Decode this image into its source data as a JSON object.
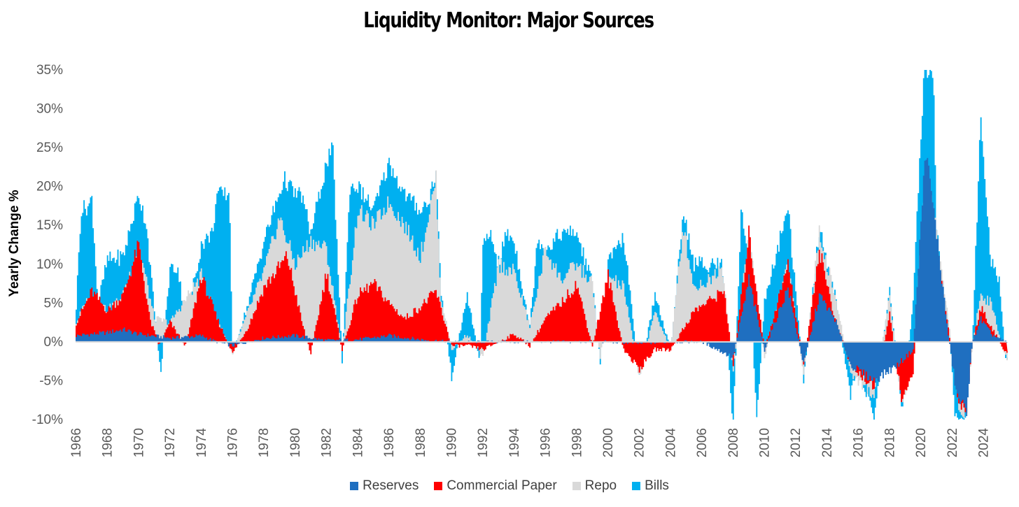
{
  "chart_data": {
    "type": "area",
    "title": "Liquidity Monitor: Major Sources",
    "xlabel": "",
    "ylabel": "Yearly Change %",
    "xlim": [
      1966,
      2025.5
    ],
    "ylim": [
      -10,
      35
    ],
    "yticks": [
      "-10%",
      "-5%",
      "0%",
      "5%",
      "10%",
      "15%",
      "20%",
      "25%",
      "30%",
      "35%"
    ],
    "ytick_values": [
      -10,
      -5,
      0,
      5,
      10,
      15,
      20,
      25,
      30,
      35
    ],
    "xticks": [
      "1966",
      "1968",
      "1970",
      "1972",
      "1974",
      "1976",
      "1978",
      "1980",
      "1982",
      "1984",
      "1986",
      "1988",
      "1990",
      "1992",
      "1994",
      "1996",
      "1998",
      "2000",
      "2002",
      "2004",
      "2006",
      "2008",
      "2010",
      "2012",
      "2014",
      "2016",
      "2018",
      "2020",
      "2022",
      "2024"
    ],
    "grid": false,
    "legend_position": "bottom",
    "series": [
      {
        "name": "Reserves",
        "color": "#1F6FC0",
        "points": [
          [
            1966,
            0.8
          ],
          [
            1968,
            1.2
          ],
          [
            1969,
            1.6
          ],
          [
            1970,
            1.0
          ],
          [
            1972,
            0.5
          ],
          [
            1974,
            0.8
          ],
          [
            1975,
            0.0
          ],
          [
            1976,
            -0.5
          ],
          [
            1978,
            0.5
          ],
          [
            1980,
            0.8
          ],
          [
            1982,
            0.2
          ],
          [
            1984,
            0.3
          ],
          [
            1986,
            0.8
          ],
          [
            1988,
            0.3
          ],
          [
            1990,
            0.0
          ],
          [
            1992,
            0.0
          ],
          [
            1994,
            0.0
          ],
          [
            1996,
            0.0
          ],
          [
            1998,
            0.0
          ],
          [
            2000,
            0.0
          ],
          [
            2002,
            -0.2
          ],
          [
            2004,
            0.0
          ],
          [
            2006,
            0.0
          ],
          [
            2008,
            -2.0
          ],
          [
            2009,
            8.0
          ],
          [
            2010,
            -1.0
          ],
          [
            2011.5,
            7.0
          ],
          [
            2012.5,
            -3.0
          ],
          [
            2013.5,
            6.0
          ],
          [
            2014.5,
            3.0
          ],
          [
            2015.5,
            -3.0
          ],
          [
            2017,
            -5.0
          ],
          [
            2018.5,
            -3.0
          ],
          [
            2019.5,
            -1.0
          ],
          [
            2020.3,
            25.0
          ],
          [
            2021,
            14.0
          ],
          [
            2021.8,
            0.0
          ],
          [
            2022.3,
            -7.0
          ],
          [
            2022.9,
            -9.0
          ],
          [
            2023.3,
            0.0
          ],
          [
            2023.8,
            3.0
          ],
          [
            2024.5,
            1.0
          ],
          [
            2025.4,
            0.0
          ]
        ]
      },
      {
        "name": "Commercial Paper",
        "color": "#FF0000",
        "points": [
          [
            1966,
            2.5
          ],
          [
            1967,
            6.5
          ],
          [
            1968,
            4.0
          ],
          [
            1969,
            6.0
          ],
          [
            1970,
            12.5
          ],
          [
            1970.7,
            3.0
          ],
          [
            1971.3,
            -0.5
          ],
          [
            1972,
            2.5
          ],
          [
            1973,
            -0.5
          ],
          [
            1974,
            8.5
          ],
          [
            1975,
            3.0
          ],
          [
            1976,
            -1.5
          ],
          [
            1977,
            2.0
          ],
          [
            1978,
            7.0
          ],
          [
            1979.5,
            11.0
          ],
          [
            1980.5,
            2.0
          ],
          [
            1981,
            -1.5
          ],
          [
            1982,
            9.0
          ],
          [
            1983,
            -1.0
          ],
          [
            1984,
            6.0
          ],
          [
            1985,
            7.5
          ],
          [
            1986,
            5.0
          ],
          [
            1987,
            3.0
          ],
          [
            1988,
            4.5
          ],
          [
            1989,
            6.5
          ],
          [
            1990,
            -0.5
          ],
          [
            1991,
            -0.5
          ],
          [
            1992,
            -1.0
          ],
          [
            1993,
            0.0
          ],
          [
            1994,
            1.0
          ],
          [
            1995,
            -0.5
          ],
          [
            1996,
            3.0
          ],
          [
            1997,
            5.0
          ],
          [
            1998,
            7.5
          ],
          [
            1999,
            -0.5
          ],
          [
            2000,
            8.5
          ],
          [
            2001,
            -1.0
          ],
          [
            2002,
            -3.5
          ],
          [
            2003,
            -1.0
          ],
          [
            2004,
            -1.0
          ],
          [
            2005.5,
            4.0
          ],
          [
            2007,
            6.0
          ],
          [
            2007.4,
            7.0
          ],
          [
            2008,
            -3.0
          ],
          [
            2009,
            14.0
          ],
          [
            2010,
            -1.0
          ],
          [
            2011.5,
            10.0
          ],
          [
            2012.5,
            -3.0
          ],
          [
            2013.5,
            12.0
          ],
          [
            2014.5,
            3.0
          ],
          [
            2015.5,
            -3.0
          ],
          [
            2017,
            -6.0
          ],
          [
            2018,
            3.5
          ],
          [
            2018.8,
            -8.0
          ],
          [
            2019.5,
            -4.0
          ],
          [
            2020.3,
            18.0
          ],
          [
            2021,
            12.0
          ],
          [
            2021.8,
            1.0
          ],
          [
            2022.4,
            -7.5
          ],
          [
            2022.9,
            -9.0
          ],
          [
            2023.3,
            0.0
          ],
          [
            2023.8,
            4.5
          ],
          [
            2024.5,
            2.0
          ],
          [
            2025.4,
            -1.5
          ]
        ]
      },
      {
        "name": "Repo",
        "color": "#D9D9D9",
        "points": [
          [
            1966,
            2.5
          ],
          [
            1967,
            6.5
          ],
          [
            1968,
            4.0
          ],
          [
            1969,
            6.0
          ],
          [
            1970,
            12.5
          ],
          [
            1971,
            3.0
          ],
          [
            1972,
            2.5
          ],
          [
            1974,
            8.5
          ],
          [
            1975,
            3.0
          ],
          [
            1976,
            -1.5
          ],
          [
            1977,
            4.0
          ],
          [
            1978,
            9.0
          ],
          [
            1979,
            16.0
          ],
          [
            1980,
            10.0
          ],
          [
            1981,
            13.0
          ],
          [
            1982,
            12.0
          ],
          [
            1983,
            -1.0
          ],
          [
            1984,
            17.0
          ],
          [
            1985,
            15.0
          ],
          [
            1986,
            18.0
          ],
          [
            1987,
            15.0
          ],
          [
            1988,
            11.0
          ],
          [
            1989,
            21.0
          ],
          [
            1989.3,
            6.0
          ],
          [
            1990,
            -1.0
          ],
          [
            1991,
            1.0
          ],
          [
            1992,
            -2.0
          ],
          [
            1993,
            10.0
          ],
          [
            1994,
            9.0
          ],
          [
            1995,
            2.0
          ],
          [
            1996,
            12.0
          ],
          [
            1997,
            8.0
          ],
          [
            1998,
            10.0
          ],
          [
            1999,
            7.5
          ],
          [
            1999.5,
            -2.5
          ],
          [
            2000,
            8.5
          ],
          [
            2001,
            7.0
          ],
          [
            2002,
            -4.5
          ],
          [
            2003,
            4.0
          ],
          [
            2004,
            -1.0
          ],
          [
            2004.8,
            15.0
          ],
          [
            2005.5,
            7.0
          ],
          [
            2006.5,
            8.0
          ],
          [
            2007.3,
            10.0
          ],
          [
            2008,
            -4.0
          ],
          [
            2009,
            14.0
          ],
          [
            2010,
            -2.0
          ],
          [
            2011.5,
            10.0
          ],
          [
            2012.5,
            -4.0
          ],
          [
            2013.5,
            14.0
          ],
          [
            2014.5,
            6.0
          ],
          [
            2015.5,
            -4.0
          ],
          [
            2017,
            -7.0
          ],
          [
            2018,
            6.0
          ],
          [
            2018.8,
            -8.5
          ],
          [
            2019.5,
            -2.0
          ],
          [
            2020.3,
            22.0
          ],
          [
            2021,
            14.0
          ],
          [
            2021.8,
            2.0
          ],
          [
            2022.4,
            -8.0
          ],
          [
            2022.9,
            -9.5
          ],
          [
            2023.3,
            0.0
          ],
          [
            2023.8,
            6.0
          ],
          [
            2024.5,
            5.0
          ],
          [
            2025.4,
            -2.0
          ]
        ]
      },
      {
        "name": "Bills",
        "color": "#00B0F0",
        "points": [
          [
            1966,
            4.5
          ],
          [
            1966.3,
            17.0
          ],
          [
            1966.8,
            17.5
          ],
          [
            1967,
            18.5
          ],
          [
            1967.4,
            5.0
          ],
          [
            1968,
            10.5
          ],
          [
            1969,
            11.0
          ],
          [
            1970,
            19.0
          ],
          [
            1970.5,
            15.0
          ],
          [
            1971,
            4.0
          ],
          [
            1971.4,
            -4.3
          ],
          [
            1972,
            9.5
          ],
          [
            1972.5,
            9.5
          ],
          [
            1973,
            2.5
          ],
          [
            1974,
            12.5
          ],
          [
            1974.7,
            14.0
          ],
          [
            1975,
            19.0
          ],
          [
            1975.8,
            19.0
          ],
          [
            1976,
            -1.5
          ],
          [
            1977,
            5.0
          ],
          [
            1978,
            13.0
          ],
          [
            1979.3,
            21.0
          ],
          [
            1980,
            19.0
          ],
          [
            1980.4,
            19.0
          ],
          [
            1981,
            14.0
          ],
          [
            1982,
            23.0
          ],
          [
            1982.4,
            25.0
          ],
          [
            1983,
            -2.5
          ],
          [
            1983.5,
            20.0
          ],
          [
            1984,
            20.0
          ],
          [
            1985,
            17.0
          ],
          [
            1986,
            23.0
          ],
          [
            1987,
            19.0
          ],
          [
            1988,
            17.0
          ],
          [
            1988.5,
            18.0
          ],
          [
            1989,
            22.0
          ],
          [
            1989.3,
            7.0
          ],
          [
            1990,
            -4.5
          ],
          [
            1990.7,
            3.0
          ],
          [
            1991,
            6.0
          ],
          [
            1991.8,
            -2.5
          ],
          [
            1992,
            12.0
          ],
          [
            1992.5,
            14.0
          ],
          [
            1993,
            10.0
          ],
          [
            1993.5,
            14.0
          ],
          [
            1994,
            13.0
          ],
          [
            1995,
            2.0
          ],
          [
            1995.5,
            13.5
          ],
          [
            1996,
            12.0
          ],
          [
            1997,
            14.0
          ],
          [
            1998,
            14.0
          ],
          [
            1999,
            7.5
          ],
          [
            1999.5,
            -2.5
          ],
          [
            2000,
            10.0
          ],
          [
            2001,
            13.5
          ],
          [
            2002,
            -4.5
          ],
          [
            2003,
            6.0
          ],
          [
            2004,
            -1.0
          ],
          [
            2004.8,
            17.0
          ],
          [
            2005.5,
            10.0
          ],
          [
            2006.5,
            10.0
          ],
          [
            2007.3,
            10.0
          ],
          [
            2008,
            -11.0
          ],
          [
            2008.5,
            17.0
          ],
          [
            2009,
            10.0
          ],
          [
            2009.5,
            -10.0
          ],
          [
            2010,
            5.0
          ],
          [
            2011.5,
            17.5
          ],
          [
            2012.5,
            -5.0
          ],
          [
            2013.5,
            14.5
          ],
          [
            2014.5,
            6.0
          ],
          [
            2015.5,
            -7.0
          ],
          [
            2016,
            -3.0
          ],
          [
            2017,
            -10.0
          ],
          [
            2018,
            7.0
          ],
          [
            2018.8,
            -9.0
          ],
          [
            2019.5,
            5.0
          ],
          [
            2020.2,
            35.0
          ],
          [
            2020.8,
            35.0
          ],
          [
            2021,
            14.0
          ],
          [
            2021.8,
            2.0
          ],
          [
            2022.2,
            -10.0
          ],
          [
            2022.8,
            -10.0
          ],
          [
            2023.3,
            0.0
          ],
          [
            2023.8,
            29.0
          ],
          [
            2024.5,
            10.0
          ],
          [
            2025,
            8.0
          ],
          [
            2025.4,
            -2.0
          ]
        ]
      }
    ]
  }
}
